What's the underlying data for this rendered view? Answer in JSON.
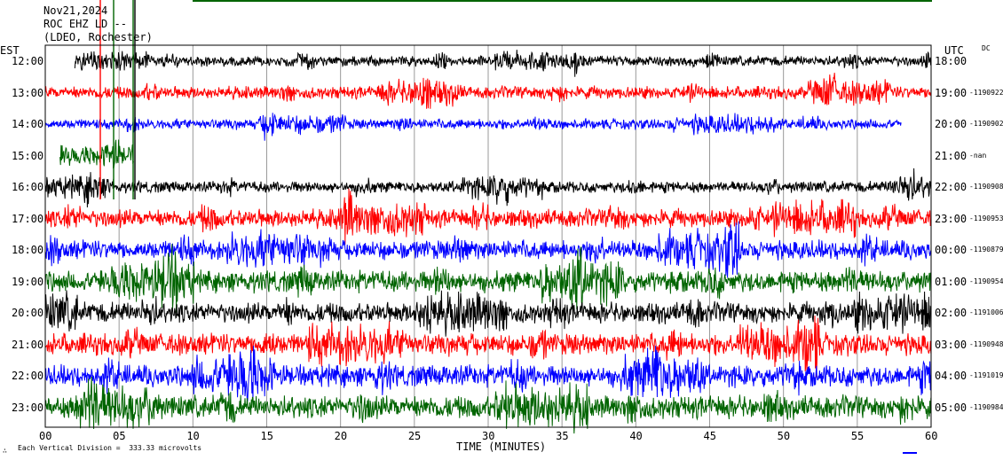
{
  "header": {
    "date": "Nov21,2024",
    "station": "ROC EHZ LD --",
    "network": "(LDEO, Rochester)"
  },
  "left_timezone": "EST",
  "right_timezone": "UTC",
  "right_corner_tag": "DC",
  "footer": {
    "scale_note": "Each Vertical Division =  333.33 microvolts",
    "corner_mark": "∴"
  },
  "chart_data": {
    "type": "line",
    "title": "ROC EHZ LD --",
    "xlabel": "TIME (MINUTES)",
    "x_ticks": [
      "00",
      "05",
      "10",
      "15",
      "20",
      "25",
      "30",
      "35",
      "40",
      "45",
      "50",
      "55",
      "60"
    ],
    "xlim": [
      0,
      60
    ],
    "trace_colors": [
      "#000000",
      "#ff0000",
      "#0000ff",
      "#006400"
    ],
    "rows": [
      {
        "est": "12:00",
        "utc": "18:00",
        "value": "",
        "color": "#000000",
        "start_min": 2.0,
        "end_min": 60,
        "amplitude": 0.45
      },
      {
        "est": "13:00",
        "utc": "19:00",
        "value": "1190922",
        "color": "#ff0000",
        "start_min": 0,
        "end_min": 60,
        "amplitude": 0.55
      },
      {
        "est": "14:00",
        "utc": "20:00",
        "value": "1190902",
        "color": "#0000ff",
        "start_min": 0,
        "end_min": 58,
        "amplitude": 0.45
      },
      {
        "est": "15:00",
        "utc": "21:00",
        "value": "nan",
        "color": "#006400",
        "start_min": 1.0,
        "end_min": 6.0,
        "amplitude": 0.9
      },
      {
        "est": "16:00",
        "utc": "22:00",
        "value": "1190908",
        "color": "#000000",
        "start_min": 0,
        "end_min": 60,
        "amplitude": 0.5
      },
      {
        "est": "17:00",
        "utc": "23:00",
        "value": "1190953",
        "color": "#ff0000",
        "start_min": 0,
        "end_min": 60,
        "amplitude": 0.8
      },
      {
        "est": "18:00",
        "utc": "00:00",
        "value": "1190879",
        "color": "#0000ff",
        "start_min": 0,
        "end_min": 60,
        "amplitude": 0.85
      },
      {
        "est": "19:00",
        "utc": "01:00",
        "value": "1190954",
        "color": "#006400",
        "start_min": 0,
        "end_min": 60,
        "amplitude": 0.95
      },
      {
        "est": "20:00",
        "utc": "02:00",
        "value": "1191006",
        "color": "#000000",
        "start_min": 0,
        "end_min": 60,
        "amplitude": 0.9
      },
      {
        "est": "21:00",
        "utc": "03:00",
        "value": "1190948",
        "color": "#ff0000",
        "start_min": 0,
        "end_min": 60,
        "amplitude": 0.95
      },
      {
        "est": "22:00",
        "utc": "04:00",
        "value": "1191019",
        "color": "#0000ff",
        "start_min": 0,
        "end_min": 60,
        "amplitude": 0.95
      },
      {
        "est": "23:00",
        "utc": "05:00",
        "value": "1190984",
        "color": "#006400",
        "start_min": 0,
        "end_min": 60,
        "amplitude": 1.0
      }
    ],
    "grid": true,
    "vertical_division_microvolts": 333.33
  }
}
